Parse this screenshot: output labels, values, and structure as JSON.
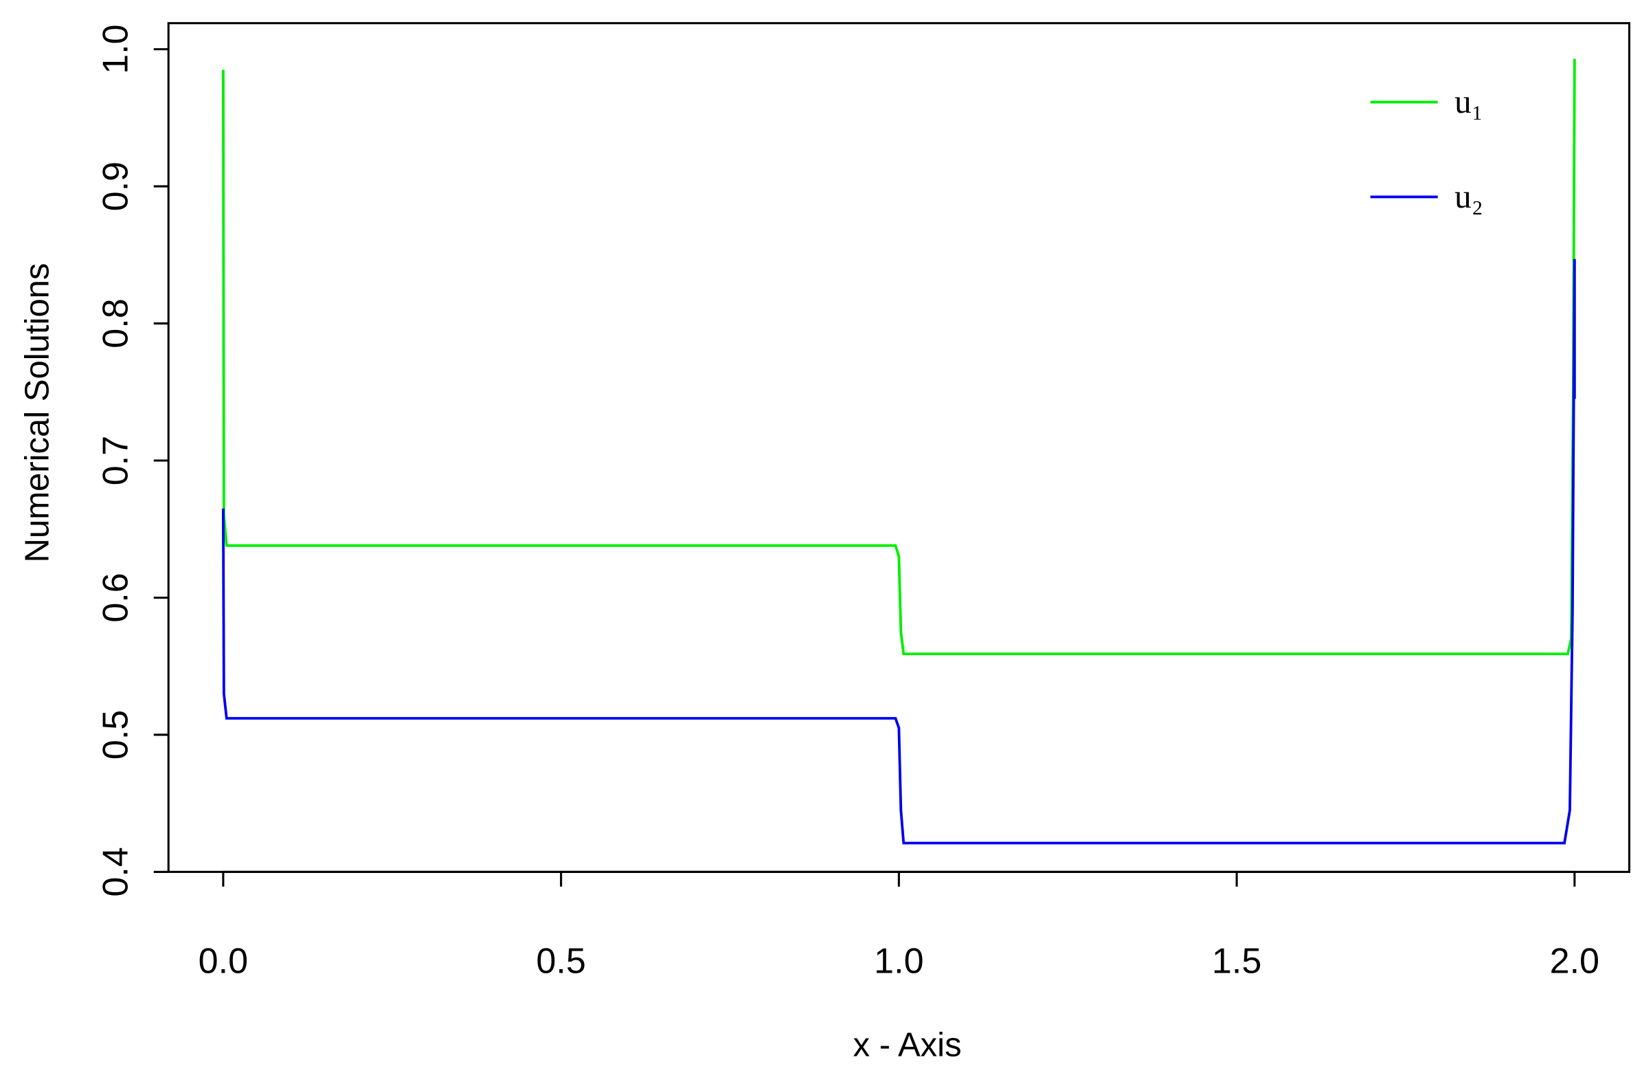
{
  "chart_data": {
    "type": "line",
    "xlabel": "x - Axis",
    "ylabel": "Numerical Solutions",
    "xlim": [
      -0.081,
      2.081
    ],
    "ylim": [
      0.4,
      1.019
    ],
    "xticks": [
      {
        "value": 0,
        "label": "0.0"
      },
      0.5,
      {
        "value": 1,
        "label": "1.0"
      },
      1.5,
      {
        "value": 2,
        "label": "2.0"
      }
    ],
    "yticks": [
      0.4,
      0.5,
      0.6,
      0.7,
      0.8,
      0.9,
      {
        "value": 1,
        "label": "1.0"
      }
    ],
    "legend": "top-right",
    "series": [
      {
        "name": "u₁",
        "color": "#00ee00",
        "x": [
          0,
          0.001,
          0.005,
          0.995,
          1.0,
          1.003,
          1.007,
          1.99,
          1.995,
          1.998,
          2.0
        ],
        "values": [
          0.985,
          0.66,
          0.638,
          0.638,
          0.63,
          0.575,
          0.559,
          0.559,
          0.57,
          0.75,
          0.993
        ]
      },
      {
        "name": "u₂",
        "color": "#0000ee",
        "x": [
          0,
          0.001,
          0.005,
          0.995,
          1.0,
          1.003,
          1.007,
          1.985,
          1.993,
          1.997,
          2.0,
          2.0
        ],
        "values": [
          0.665,
          0.53,
          0.512,
          0.512,
          0.505,
          0.445,
          0.421,
          0.421,
          0.445,
          0.59,
          0.847,
          0.745
        ]
      }
    ]
  }
}
